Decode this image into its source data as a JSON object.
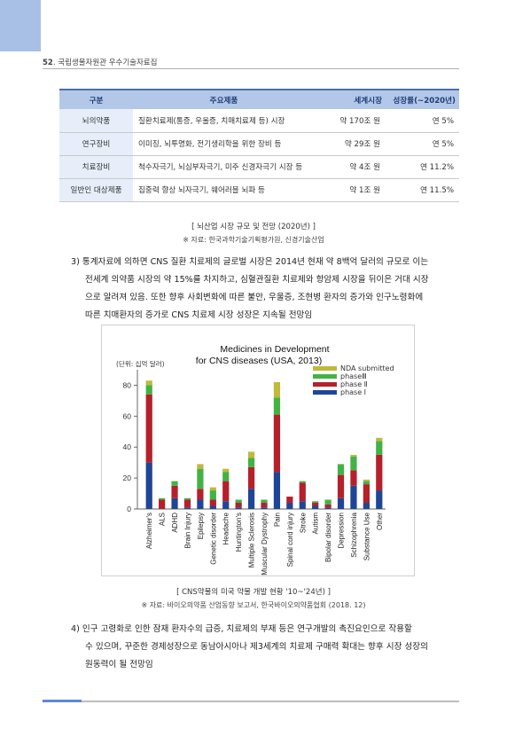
{
  "header": {
    "page_number": "52",
    "title": "국립생물자원관 우수기술자료집"
  },
  "table": {
    "headers": [
      "구분",
      "주요제품",
      "세계시장",
      "성장률(~2020년)"
    ],
    "rows": [
      [
        "뇌의약품",
        "질환치료제(통증, 우울증, 치매치료제 등) 시장",
        "약 170조 원",
        "연 5%"
      ],
      [
        "연구장비",
        "이미징, 뇌투명화, 전기생리학을 위한 장비 등",
        "약 29조 원",
        "연 5%"
      ],
      [
        "치료장비",
        "척수자극기, 뇌심부자극기, 미주 신경자극기 시장 등",
        "약 4조 원",
        "연 11.2%"
      ],
      [
        "일반인 대상제품",
        "집중력 향상 뇌자극기, 웨어러블 뇌파 등",
        "약 1조 원",
        "연 11.5%"
      ]
    ],
    "caption": "[ 뇌산업 시장 규모 및 전망 (2020년) ]",
    "source": "※ 자료: 한국과학기술기획평가원, 신경기술산업"
  },
  "paragraph3": {
    "lines": [
      "3) 통계자료에 의하면 CNS 질환 치료제의 글로벌 시장은 2014년 현재 약 8백억 달러의 규모로 이는",
      "전세계 의약품 시장의 약 15%를 차지하고, 심혈관질환 치료제와 항암제 시장을 뒤이은 거대 시장",
      "으로 알려져 있음. 또한 향후 사회변화에 따른 불안, 우울증, 조현병 환자의 증가와 인구노령화에",
      "따른 치매환자의 증가로 CNS 치료제 시장 성장은 지속될 전망임"
    ]
  },
  "chart_data": {
    "type": "bar",
    "stacked": true,
    "title": "Medicines in Development",
    "subtitle": "for CNS diseases (USA, 2013)",
    "unit_label": "(단위: 십억 달러)",
    "xlabel": "",
    "ylabel": "",
    "ylim": [
      0,
      90
    ],
    "yticks": [
      0,
      20,
      40,
      60,
      80
    ],
    "grid": false,
    "legend_position": "top-right",
    "categories": [
      "Alzheimer's",
      "ALS",
      "ADHD",
      "Brain Injury",
      "Epilepsy",
      "Genetic disorder",
      "Headache",
      "Huntington's",
      "Multiple Sclerosis",
      "Muscular Dystrophy",
      "Pain",
      "Spinal cord injury",
      "Stroke",
      "Autism",
      "Bipolar disorder",
      "Depression",
      "Schizophrenia",
      "Substance Use",
      "Other"
    ],
    "series": [
      {
        "name": "phase Ⅰ",
        "color": "#1f4596",
        "values": [
          30,
          0,
          7,
          1,
          6,
          2,
          5,
          1,
          13,
          1,
          24,
          4,
          5,
          2,
          1,
          7,
          15,
          4,
          12
        ]
      },
      {
        "name": "phase Ⅱ",
        "color": "#b5202a",
        "values": [
          44,
          6,
          8,
          5,
          7,
          4,
          13,
          3,
          14,
          3,
          37,
          4,
          12,
          2,
          2,
          15,
          10,
          12,
          23
        ]
      },
      {
        "name": "phaseⅢ",
        "color": "#43b245",
        "values": [
          6,
          1,
          3,
          1,
          13,
          6,
          6,
          2,
          6,
          2,
          11,
          0,
          1,
          1,
          3,
          7,
          9,
          2,
          9
        ]
      },
      {
        "name": "NDA submitted",
        "color": "#c0b93a",
        "values": [
          3,
          0,
          0,
          0,
          3,
          2,
          2,
          0,
          4,
          0,
          10,
          0,
          0,
          0,
          0,
          0,
          1,
          1,
          2
        ]
      }
    ]
  },
  "chart_caption": {
    "caption": "[ CNS약물의 미국 약물 개발 현황 '10~'24년) ]",
    "source": "※ 자료: 바이오의약품 산업동향 보고서, 한국바이오의약품협회 (2018. 12)"
  },
  "paragraph4": {
    "lines": [
      "4) 인구 고령화로 인한 잠재 환자수의 급증, 치료제의 부재 등은 연구개발의 촉진요인으로 작용할",
      "수 있으며, 꾸준한 경제성장으로 동남아시아나 제3세계의 치료제 구매력 확대는 향후 시장 성장의",
      "원동력이 될 전망임"
    ]
  }
}
